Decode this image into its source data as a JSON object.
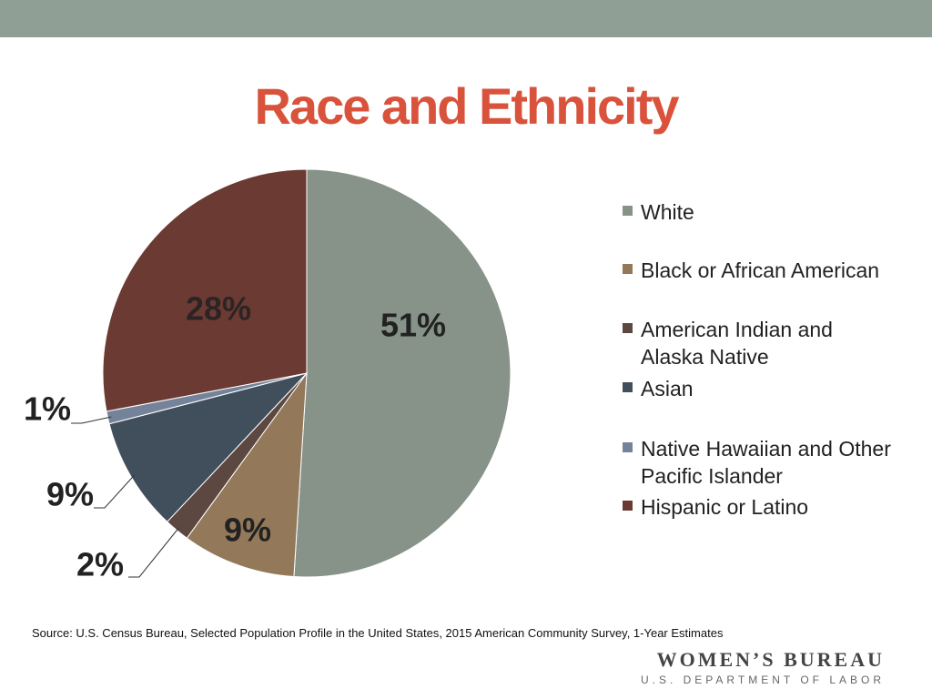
{
  "slide": {
    "title": "Race and Ethnicity",
    "source": "Source: U.S. Census Bureau, Selected Population Profile in the United States, 2015 American Community Survey, 1-Year Estimates",
    "brand_name": "WOMEN’S BUREAU",
    "brand_sub": "U.S. DEPARTMENT OF LABOR"
  },
  "colors": {
    "band": "#8f9f96",
    "title": "#d9533c"
  },
  "chart_data": {
    "type": "pie",
    "title": "Race and Ethnicity",
    "legend_position": "right",
    "slices": [
      {
        "name": "White",
        "value": 51,
        "label": "51%",
        "color": "#879288"
      },
      {
        "name": "Black or African American",
        "value": 9,
        "label": "9%",
        "color": "#93785a"
      },
      {
        "name": "American Indian and Alaska Native",
        "value": 2,
        "label": "2%",
        "color": "#5d4841"
      },
      {
        "name": "Asian",
        "value": 9,
        "label": "9%",
        "color": "#414e5c"
      },
      {
        "name": "Native Hawaiian and Other Pacific Islander",
        "value": 1,
        "label": "1%",
        "color": "#75839a"
      },
      {
        "name": "Hispanic or Latino",
        "value": 28,
        "label": "28%",
        "color": "#6b3a33"
      }
    ]
  }
}
